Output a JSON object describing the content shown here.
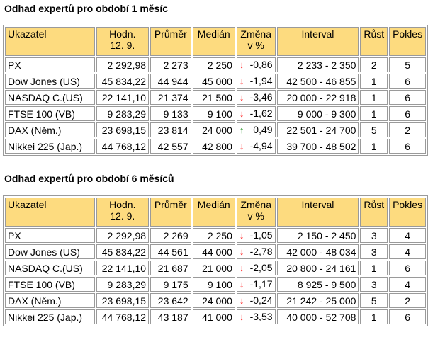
{
  "sections": [
    {
      "title": "Odhad expertů pro období 1 měsíc",
      "headers": {
        "name": "Ukazatel",
        "hodn_line1": "Hodn.",
        "hodn_line2": "12. 9.",
        "prumer": "Průměr",
        "median": "Medián",
        "zmena_line1": "Změna",
        "zmena_line2": "v %",
        "interval": "Interval",
        "rust": "Růst",
        "pokles": "Pokles"
      },
      "rows": [
        {
          "name": "PX",
          "hodn": "2 292,98",
          "prumer": "2 273",
          "median": "2 250",
          "dir": "down",
          "arrow": "↓",
          "zmena": "-0,86",
          "interval": "2 233 - 2 350",
          "rust": "2",
          "pokles": "5"
        },
        {
          "name": "Dow Jones (US)",
          "hodn": "45 834,22",
          "prumer": "44 944",
          "median": "45 000",
          "dir": "down",
          "arrow": "↓",
          "zmena": "-1,94",
          "interval": "42 500 - 46 855",
          "rust": "1",
          "pokles": "6"
        },
        {
          "name": "NASDAQ C.(US)",
          "hodn": "22 141,10",
          "prumer": "21 374",
          "median": "21 500",
          "dir": "down",
          "arrow": "↓",
          "zmena": "-3,46",
          "interval": "20 000 - 22 918",
          "rust": "1",
          "pokles": "6"
        },
        {
          "name": "FTSE 100 (VB)",
          "hodn": "9 283,29",
          "prumer": "9 133",
          "median": "9 100",
          "dir": "down",
          "arrow": "↓",
          "zmena": "-1,62",
          "interval": "9 000 - 9 300",
          "rust": "1",
          "pokles": "6"
        },
        {
          "name": "DAX (Něm.)",
          "hodn": "23 698,15",
          "prumer": "23 814",
          "median": "24 000",
          "dir": "up",
          "arrow": "↑",
          "zmena": "0,49",
          "interval": "22 501 - 24 700",
          "rust": "5",
          "pokles": "2"
        },
        {
          "name": "Nikkei 225 (Jap.)",
          "hodn": "44 768,12",
          "prumer": "42 557",
          "median": "42 800",
          "dir": "down",
          "arrow": "↓",
          "zmena": "-4,94",
          "interval": "39 700 - 48 502",
          "rust": "1",
          "pokles": "6"
        }
      ]
    },
    {
      "title": "Odhad expertů pro období 6 měsíců",
      "headers": {
        "name": "Ukazatel",
        "hodn_line1": "Hodn.",
        "hodn_line2": "12. 9.",
        "prumer": "Průměr",
        "median": "Medián",
        "zmena_line1": "Změna",
        "zmena_line2": "v %",
        "interval": "Interval",
        "rust": "Růst",
        "pokles": "Pokles"
      },
      "rows": [
        {
          "name": "PX",
          "hodn": "2 292,98",
          "prumer": "2 269",
          "median": "2 250",
          "dir": "down",
          "arrow": "↓",
          "zmena": "-1,05",
          "interval": "2 150 - 2 450",
          "rust": "3",
          "pokles": "4"
        },
        {
          "name": "Dow Jones (US)",
          "hodn": "45 834,22",
          "prumer": "44 561",
          "median": "44 000",
          "dir": "down",
          "arrow": "↓",
          "zmena": "-2,78",
          "interval": "42 000 - 48 034",
          "rust": "3",
          "pokles": "4"
        },
        {
          "name": "NASDAQ C.(US)",
          "hodn": "22 141,10",
          "prumer": "21 687",
          "median": "21 000",
          "dir": "down",
          "arrow": "↓",
          "zmena": "-2,05",
          "interval": "20 800 - 24 161",
          "rust": "1",
          "pokles": "6"
        },
        {
          "name": "FTSE 100 (VB)",
          "hodn": "9 283,29",
          "prumer": "9 175",
          "median": "9 100",
          "dir": "down",
          "arrow": "↓",
          "zmena": "-1,17",
          "interval": "8 925 - 9 500",
          "rust": "3",
          "pokles": "4"
        },
        {
          "name": "DAX (Něm.)",
          "hodn": "23 698,15",
          "prumer": "23 642",
          "median": "24 000",
          "dir": "down",
          "arrow": "↓",
          "zmena": "-0,24",
          "interval": "21 242 - 25 000",
          "rust": "5",
          "pokles": "2"
        },
        {
          "name": "Nikkei 225 (Jap.)",
          "hodn": "44 768,12",
          "prumer": "43 187",
          "median": "41 000",
          "dir": "down",
          "arrow": "↓",
          "zmena": "-3,53",
          "interval": "40 000 - 52 708",
          "rust": "1",
          "pokles": "6"
        }
      ]
    }
  ],
  "colors": {
    "header_bg": "#fddb7f",
    "border": "#9a9a9a",
    "down_arrow": "#ff0000",
    "up_arrow": "#008000"
  }
}
